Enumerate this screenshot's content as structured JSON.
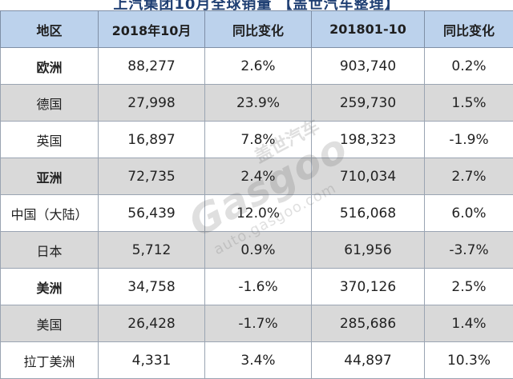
{
  "title": "上汽集团10月全球销量 【盖世汽车整理】",
  "table": {
    "headers": [
      "地区",
      "2018年10月",
      "同比变化",
      "201801-10",
      "同比变化"
    ],
    "rows": [
      {
        "type": "region",
        "shade": "white",
        "cells": [
          "欧洲",
          "88,277",
          "2.6%",
          "903,740",
          "0.2%"
        ]
      },
      {
        "type": "country",
        "shade": "gray",
        "cells": [
          "德国",
          "27,998",
          "23.9%",
          "259,730",
          "1.5%"
        ]
      },
      {
        "type": "country",
        "shade": "white",
        "cells": [
          "英国",
          "16,897",
          "7.8%",
          "198,323",
          "-1.9%"
        ]
      },
      {
        "type": "region",
        "shade": "gray",
        "cells": [
          "亚洲",
          "72,735",
          "2.4%",
          "710,034",
          "2.7%"
        ]
      },
      {
        "type": "country",
        "shade": "white",
        "cells": [
          "中国（大陆）",
          "56,439",
          "12.0%",
          "516,068",
          "6.0%"
        ]
      },
      {
        "type": "country",
        "shade": "gray",
        "cells": [
          "日本",
          "5,712",
          "0.9%",
          "61,956",
          "-3.7%"
        ]
      },
      {
        "type": "region",
        "shade": "white",
        "cells": [
          "美洲",
          "34,758",
          "-1.6%",
          "370,126",
          "2.5%"
        ]
      },
      {
        "type": "country",
        "shade": "gray",
        "cells": [
          "美国",
          "26,428",
          "-1.7%",
          "285,686",
          "1.4%"
        ]
      },
      {
        "type": "country",
        "shade": "white",
        "cells": [
          "拉丁美洲",
          "4,331",
          "3.4%",
          "44,897",
          "10.3%"
        ]
      }
    ]
  },
  "watermark": {
    "logo": "Gasgoo",
    "cn": "盖世汽车",
    "url": "auto.gasgoo.com"
  },
  "colors": {
    "header_bg": "#bcd2ec",
    "row_gray": "#d9d9d9",
    "title_color": "#1f3f73"
  }
}
